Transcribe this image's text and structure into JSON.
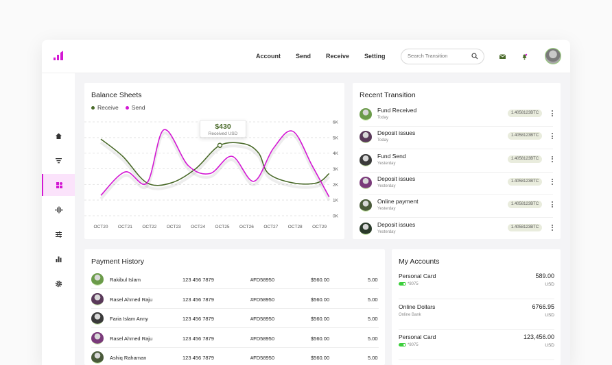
{
  "topbar": {
    "nav": [
      "Account",
      "Send",
      "Receive",
      "Setting"
    ],
    "search_placeholder": "Search Transition",
    "colors": {
      "accent": "#d318d3",
      "green": "#4a6a2a"
    }
  },
  "sidebar": {
    "items": [
      "home-icon",
      "filter-icon",
      "dashboard-icon",
      "waveform-icon",
      "sliders-icon",
      "bar-chart-icon",
      "gear-icon"
    ],
    "active_index": 2
  },
  "balance": {
    "title": "Balance Sheets",
    "legend": [
      "Receive",
      "Send"
    ],
    "tooltip_value": "$430",
    "tooltip_label": "Received USD"
  },
  "chart_data": {
    "type": "line",
    "categories": [
      "OCT20",
      "OCT21",
      "OCT22",
      "OCT23",
      "OCT24",
      "OCT25",
      "OCT26",
      "OCT27",
      "OCT28",
      "OCT29"
    ],
    "y_ticks": [
      "6K",
      "5K",
      "4K",
      "3K",
      "2K",
      "1K",
      "0K"
    ],
    "ylim": [
      0,
      6000
    ],
    "grid": true,
    "legend_position": "top-left",
    "series": [
      {
        "name": "Receive",
        "color": "#4a6a2a",
        "x": [
          0,
          0.9,
          1.9,
          2.9,
          3.9,
          4.9,
          5.9,
          6.5,
          6.9,
          7.9,
          8.9,
          9.4
        ],
        "values": [
          4900,
          3800,
          2100,
          2100,
          3000,
          4500,
          4600,
          4000,
          2700,
          2100,
          2100,
          2700
        ]
      },
      {
        "name": "Send",
        "color": "#d318d3",
        "x": [
          0,
          1.0,
          1.9,
          2.6,
          3.6,
          4.5,
          5.4,
          6.3,
          7.1,
          7.9,
          8.7,
          9.4
        ],
        "values": [
          1300,
          2800,
          2100,
          5500,
          3200,
          2700,
          3800,
          2200,
          4300,
          5400,
          3200,
          1200
        ]
      }
    ]
  },
  "recent": {
    "title": "Recent Transition",
    "items": [
      {
        "title": "Fund Received",
        "sub": "Today",
        "badge": "1.4058123BTC"
      },
      {
        "title": "Deposit issues",
        "sub": "Today",
        "badge": "1.4058123BTC"
      },
      {
        "title": "Fund Send",
        "sub": "Yesterday",
        "badge": "1.4058123BTC"
      },
      {
        "title": "Deposit issues",
        "sub": "Yesterday",
        "badge": "1.4058123BTC"
      },
      {
        "title": "Online payment",
        "sub": "Yesterday",
        "badge": "1.4058123BTC"
      },
      {
        "title": "Deposit issues",
        "sub": "Yesterday",
        "badge": "1.4058123BTC"
      }
    ]
  },
  "payment": {
    "title": "Payment History",
    "rows": [
      {
        "name": "Rakibul Islam",
        "phone": "123 456 7879",
        "id": "#FD58950",
        "amount": "$560.00",
        "fee": "5.00"
      },
      {
        "name": "Rasel Ahmed Raju",
        "phone": "123 456 7879",
        "id": "#FD58950",
        "amount": "$560.00",
        "fee": "5.00"
      },
      {
        "name": "Faria Islam Anny",
        "phone": "123 456 7879",
        "id": "#FD58950",
        "amount": "$560.00",
        "fee": "5.00"
      },
      {
        "name": "Rasel Ahmed Raju",
        "phone": "123 456 7879",
        "id": "#FD58950",
        "amount": "$560.00",
        "fee": "5.00"
      },
      {
        "name": "Ashiq Rahaman",
        "phone": "123 456 7879",
        "id": "#FD58950",
        "amount": "$560.00",
        "fee": "5.00"
      }
    ]
  },
  "accounts": {
    "title": "My Accounts",
    "items": [
      {
        "name": "Personal Card",
        "sub": "*8075",
        "value": "589.00",
        "currency": "USD",
        "toggle": true
      },
      {
        "name": "Online Dollars",
        "sub": "Online Bank",
        "value": "6766.95",
        "currency": "USD",
        "toggle": false
      },
      {
        "name": "Personal Card",
        "sub": "*8075",
        "value": "123,456.00",
        "currency": "USD",
        "toggle": true
      }
    ]
  }
}
